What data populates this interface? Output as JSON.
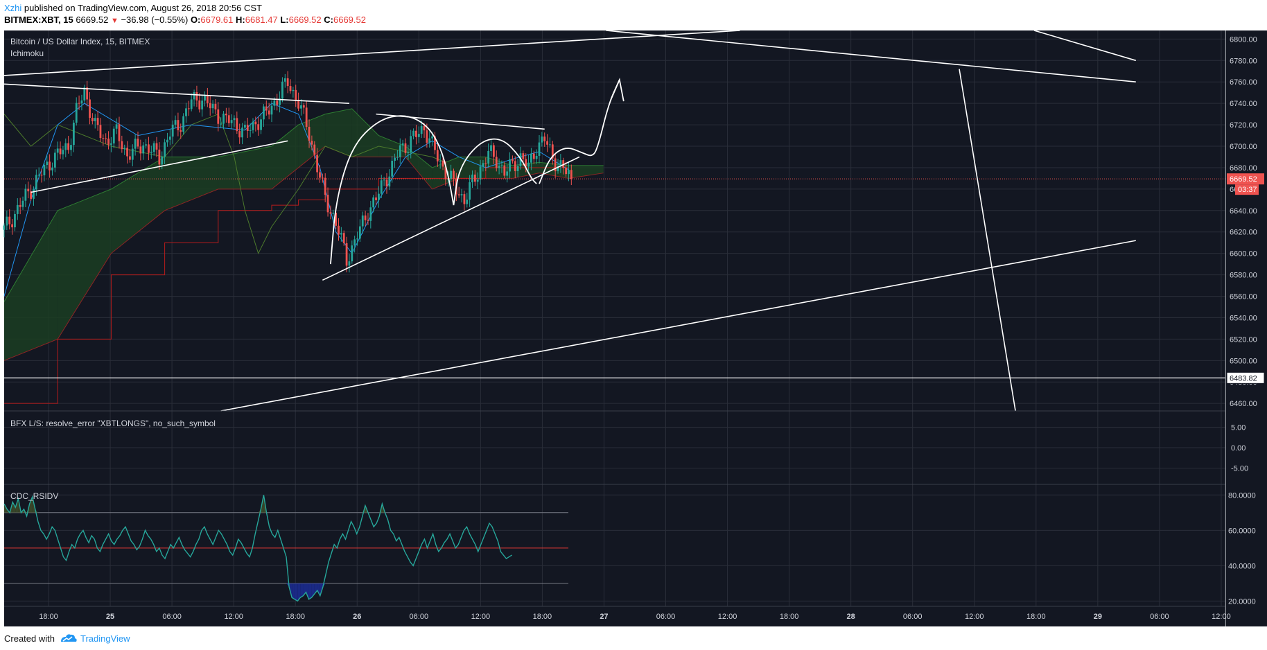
{
  "header": {
    "author": "Xzhi",
    "published": " published on TradingView.com, August 26, 2018 20:56 CST",
    "symbol": "BITMEX:XBT, 15",
    "last": "6669.52",
    "change": "−36.98 (−0.55%)",
    "o_label": "O:",
    "o": "6679.61",
    "h_label": "H:",
    "h": "6681.47",
    "l_label": "L:",
    "l": "6669.52",
    "c_label": "C:",
    "c": "6669.52"
  },
  "panes": {
    "main": {
      "title": "Bitcoin / US Dollar Index, 15, BITMEX",
      "indicator": "Ichimoku"
    },
    "bfx": {
      "title": "BFX L/S: resolve_error \"XBTLONGS\", no_such_symbol"
    },
    "rsi": {
      "title": "CDC_RSIDV"
    }
  },
  "footer": {
    "created": "Created with",
    "brand": "TradingView"
  },
  "colors": {
    "background": "#131722",
    "grid": "#2a2e39",
    "up": "#26a69a",
    "down": "#ef5350",
    "price_line": "#ef5350",
    "drawing": "#ffffff",
    "tenkan": "#2196f3",
    "kijun": "#b71c1c",
    "chikou": "#4c7a2c",
    "cloud_bull": "#1b3d22",
    "cloud_bear": "#4a1c20",
    "rsi_line": "#26a69a",
    "rsi_mid": "#e53935"
  },
  "chart_data": [
    {
      "type": "candlestick",
      "title": "Bitcoin / US Dollar Index, 15, BITMEX",
      "indicator": "Ichimoku",
      "x_ticks": [
        "18:00",
        "25",
        "06:00",
        "12:00",
        "18:00",
        "26",
        "06:00",
        "12:00",
        "18:00",
        "27",
        "06:00",
        "12:00",
        "18:00",
        "28",
        "06:00",
        "12:00",
        "18:00",
        "29",
        "06:00",
        "12:00"
      ],
      "y_ticks": [
        6460,
        6480,
        6500,
        6520,
        6540,
        6560,
        6580,
        6600,
        6620,
        6640,
        6660,
        6680,
        6700,
        6720,
        6740,
        6760,
        6780,
        6800
      ],
      "ylim": [
        6453,
        6808
      ],
      "last_price": 6669.52,
      "countdown": "03:37",
      "level_label": 6483.82,
      "close_path": [
        [
          0,
          6622
        ],
        [
          6,
          6645
        ],
        [
          12,
          6668
        ],
        [
          18,
          6688
        ],
        [
          24,
          6700
        ],
        [
          27,
          6732
        ],
        [
          30,
          6752
        ],
        [
          34,
          6718
        ],
        [
          38,
          6705
        ],
        [
          42,
          6712
        ],
        [
          46,
          6692
        ],
        [
          52,
          6702
        ],
        [
          58,
          6690
        ],
        [
          62,
          6712
        ],
        [
          66,
          6722
        ],
        [
          70,
          6742
        ],
        [
          74,
          6745
        ],
        [
          78,
          6734
        ],
        [
          82,
          6725
        ],
        [
          86,
          6722
        ],
        [
          90,
          6712
        ],
        [
          94,
          6722
        ],
        [
          98,
          6730
        ],
        [
          102,
          6745
        ],
        [
          106,
          6760
        ],
        [
          110,
          6741
        ],
        [
          114,
          6712
        ],
        [
          118,
          6670
        ],
        [
          120,
          6652
        ],
        [
          123,
          6635
        ],
        [
          126,
          6612
        ],
        [
          128,
          6595
        ],
        [
          130,
          6605
        ],
        [
          133,
          6622
        ],
        [
          136,
          6640
        ],
        [
          139,
          6650
        ],
        [
          142,
          6668
        ],
        [
          145,
          6680
        ],
        [
          148,
          6698
        ],
        [
          151,
          6702
        ],
        [
          154,
          6710
        ],
        [
          157,
          6718
        ],
        [
          160,
          6700
        ],
        [
          163,
          6685
        ],
        [
          166,
          6672
        ],
        [
          169,
          6660
        ],
        [
          172,
          6650
        ],
        [
          175,
          6665
        ],
        [
          178,
          6680
        ],
        [
          181,
          6693
        ],
        [
          184,
          6688
        ],
        [
          187,
          6675
        ],
        [
          190,
          6682
        ],
        [
          193,
          6690
        ],
        [
          196,
          6680
        ],
        [
          199,
          6700
        ],
        [
          202,
          6706
        ],
        [
          205,
          6690
        ],
        [
          208,
          6680
        ],
        [
          210,
          6676
        ],
        [
          212,
          6672
        ]
      ],
      "cloud_span": [
        [
          0,
          6555,
          6500
        ],
        [
          20,
          6640,
          6520
        ],
        [
          40,
          6660,
          6600
        ],
        [
          60,
          6690,
          6640
        ],
        [
          80,
          6690,
          6660
        ],
        [
          100,
          6700,
          6660
        ],
        [
          110,
          6720,
          6680
        ],
        [
          120,
          6730,
          6700
        ],
        [
          130,
          6735,
          6690
        ],
        [
          140,
          6710,
          6690
        ],
        [
          150,
          6700,
          6690
        ],
        [
          160,
          6680,
          6660
        ],
        [
          170,
          6690,
          6670
        ],
        [
          180,
          6690,
          6670
        ],
        [
          190,
          6682,
          6670
        ],
        [
          200,
          6685,
          6675
        ],
        [
          211,
          6682,
          6670
        ],
        [
          224,
          6682,
          6675
        ]
      ],
      "tenkan": [
        [
          0,
          6560
        ],
        [
          10,
          6650
        ],
        [
          20,
          6720
        ],
        [
          30,
          6740
        ],
        [
          50,
          6710
        ],
        [
          70,
          6720
        ],
        [
          90,
          6715
        ],
        [
          100,
          6740
        ],
        [
          110,
          6730
        ],
        [
          118,
          6680
        ],
        [
          124,
          6620
        ],
        [
          130,
          6600
        ],
        [
          140,
          6650
        ],
        [
          150,
          6690
        ],
        [
          160,
          6705
        ],
        [
          170,
          6690
        ],
        [
          180,
          6680
        ],
        [
          190,
          6688
        ],
        [
          200,
          6695
        ],
        [
          211,
          6678
        ]
      ],
      "kijun": [
        [
          0,
          6460
        ],
        [
          20,
          6520
        ],
        [
          40,
          6580
        ],
        [
          60,
          6610
        ],
        [
          80,
          6640
        ],
        [
          100,
          6645
        ],
        [
          110,
          6650
        ],
        [
          120,
          6660
        ],
        [
          140,
          6670
        ],
        [
          160,
          6670
        ],
        [
          180,
          6680
        ],
        [
          200,
          6680
        ],
        [
          211,
          6678
        ]
      ],
      "chikou": [
        [
          0,
          6730
        ],
        [
          10,
          6700
        ],
        [
          20,
          6720
        ],
        [
          40,
          6700
        ],
        [
          60,
          6690
        ],
        [
          70,
          6720
        ],
        [
          80,
          6730
        ],
        [
          86,
          6690
        ],
        [
          90,
          6640
        ],
        [
          95,
          6600
        ],
        [
          100,
          6625
        ],
        [
          110,
          6660
        ],
        [
          120,
          6700
        ],
        [
          130,
          6690
        ],
        [
          140,
          6700
        ],
        [
          150,
          6695
        ],
        [
          160,
          6690
        ],
        [
          165,
          6685
        ]
      ],
      "drawings": [
        {
          "from": [
            0,
            6758
          ],
          "to": [
            129,
            6740
          ]
        },
        {
          "from": [
            10,
            6657
          ],
          "to": [
            106,
            6705
          ]
        },
        {
          "from": [
            0,
            6766
          ],
          "to": [
            275,
            6808
          ]
        },
        {
          "from": [
            225,
            6808
          ],
          "to": [
            423,
            6760
          ]
        },
        {
          "from": [
            385,
            6808
          ],
          "to": [
            423,
            6780
          ]
        },
        {
          "from": [
            81,
            6453
          ],
          "to": [
            423,
            6612
          ]
        },
        {
          "from": [
            357,
            6772
          ],
          "to": [
            378,
            6453
          ]
        },
        {
          "from": [
            119,
            6575
          ],
          "to": [
            215,
            6690
          ]
        },
        {
          "from": [
            139,
            6730
          ],
          "to": [
            202,
            6716
          ]
        }
      ],
      "sketch_arcs": [
        {
          "points": [
            [
              122,
              6590
            ],
            [
              124,
              6650
            ],
            [
              130,
              6700
            ],
            [
              140,
              6725
            ],
            [
              150,
              6730
            ],
            [
              158,
              6720
            ],
            [
              163,
              6700
            ],
            [
              166,
              6673
            ],
            [
              168,
              6645
            ]
          ]
        },
        {
          "points": [
            [
              168,
              6645
            ],
            [
              170,
              6680
            ],
            [
              178,
              6705
            ],
            [
              186,
              6708
            ],
            [
              193,
              6690
            ],
            [
              197,
              6670
            ],
            [
              199,
              6665
            ]
          ]
        },
        {
          "points": [
            [
              200,
              6665
            ],
            [
              204,
              6690
            ],
            [
              210,
              6700
            ],
            [
              216,
              6694
            ],
            [
              220,
              6690
            ],
            [
              222,
              6700
            ],
            [
              226,
              6740
            ],
            [
              230,
              6762
            ]
          ]
        }
      ]
    },
    {
      "type": "line",
      "title": "BFX L/S: resolve_error \"XBTLONGS\", no_such_symbol",
      "y_ticks": [
        "5.00",
        "0.00",
        "-5.00"
      ],
      "series": []
    },
    {
      "type": "line",
      "title": "CDC_RSIDV",
      "y_ticks": [
        "80.0000",
        "60.0000",
        "40.0000",
        "20.0000"
      ],
      "ylim": [
        17,
        86
      ],
      "levels": [
        70,
        50,
        30
      ],
      "values": [
        75,
        72,
        70,
        76,
        73,
        78,
        70,
        72,
        68,
        75,
        79,
        72,
        65,
        60,
        58,
        55,
        58,
        62,
        60,
        55,
        50,
        45,
        43,
        48,
        52,
        50,
        55,
        58,
        60,
        56,
        53,
        57,
        55,
        50,
        48,
        52,
        55,
        58,
        54,
        52,
        55,
        57,
        60,
        62,
        58,
        54,
        52,
        49,
        51,
        55,
        60,
        57,
        55,
        52,
        48,
        50,
        46,
        44,
        48,
        52,
        50,
        53,
        56,
        52,
        49,
        47,
        45,
        48,
        52,
        55,
        60,
        62,
        58,
        55,
        52,
        56,
        60,
        58,
        55,
        52,
        48,
        46,
        50,
        55,
        53,
        50,
        47,
        45,
        50,
        58,
        65,
        72,
        80,
        70,
        62,
        58,
        56,
        60,
        55,
        50,
        45,
        28,
        22,
        21,
        20,
        22,
        23,
        25,
        21,
        22,
        24,
        26,
        23,
        28,
        35,
        42,
        47,
        52,
        50,
        55,
        58,
        55,
        60,
        65,
        62,
        58,
        62,
        68,
        74,
        70,
        66,
        62,
        64,
        68,
        75,
        70,
        66,
        60,
        58,
        54,
        56,
        52,
        48,
        45,
        42,
        40,
        44,
        48,
        52,
        55,
        50,
        54,
        58,
        52,
        48,
        50,
        53,
        55,
        58,
        54,
        50,
        52,
        56,
        60,
        62,
        58,
        55,
        52,
        48,
        52,
        56,
        60,
        64,
        62,
        58,
        54,
        48,
        46,
        44,
        45,
        46
      ]
    }
  ]
}
